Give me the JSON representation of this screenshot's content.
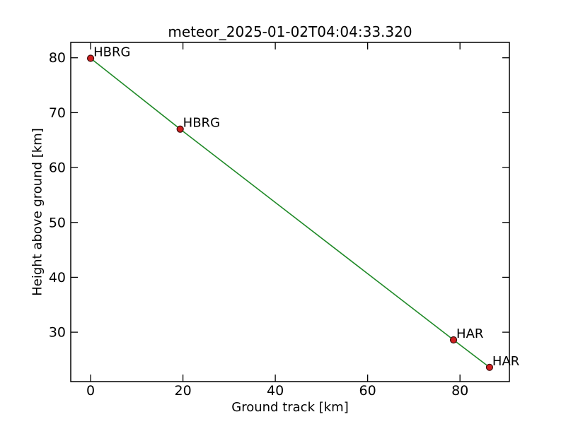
{
  "figure": {
    "background_color": "#ffffff",
    "text_color": "#000000",
    "axes_color": "#000000"
  },
  "chart_data": {
    "type": "line",
    "title": "meteor_2025-01-02T04:04:33.320",
    "xlabel": "Ground track [km]",
    "ylabel": "Height above ground [km]",
    "xlim": [
      -4.3,
      90.7
    ],
    "ylim": [
      21.0,
      82.8
    ],
    "xticks": [
      0,
      20,
      40,
      60,
      80
    ],
    "yticks": [
      30,
      40,
      50,
      60,
      70,
      80
    ],
    "grid": false,
    "legend": "none",
    "series": [
      {
        "name": "meteor-trajectory",
        "line_color": "#208a28",
        "marker": "circle",
        "marker_face": "#cf2020",
        "marker_edge": "#3a0d0d",
        "points": [
          {
            "x": 0.0,
            "y": 79.9,
            "label": "HBRG"
          },
          {
            "x": 19.4,
            "y": 67.0,
            "label": "HBRG"
          },
          {
            "x": 78.6,
            "y": 28.6,
            "label": "HAR"
          },
          {
            "x": 86.4,
            "y": 23.6,
            "label": "HAR"
          }
        ]
      }
    ]
  }
}
